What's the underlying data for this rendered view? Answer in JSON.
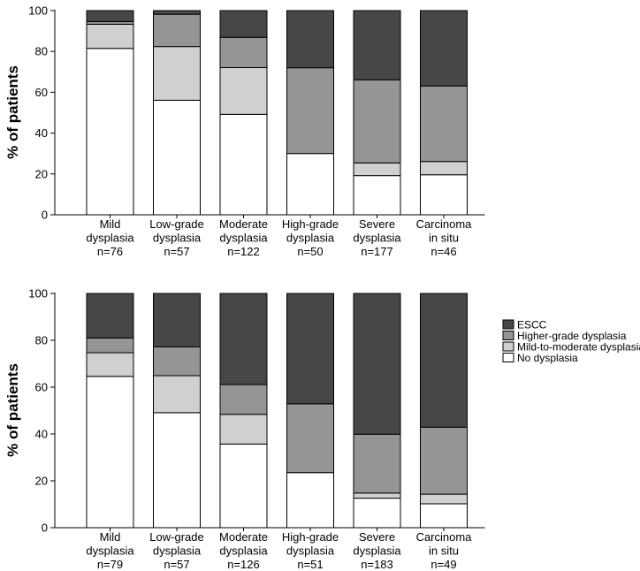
{
  "chart_data": [
    {
      "type": "bar",
      "stacked": true,
      "title": "",
      "xlabel": "",
      "ylabel": "% of patients",
      "ylim": [
        0,
        100
      ],
      "yticks": [
        0,
        20,
        40,
        60,
        80,
        100
      ],
      "categories": [
        [
          "Mild",
          "dysplasia",
          "n=76"
        ],
        [
          "Low-grade",
          "dysplasia",
          "n=57"
        ],
        [
          "Moderate",
          "dysplasia",
          "n=122"
        ],
        [
          "High-grade",
          "dysplasia",
          "n=50"
        ],
        [
          "Severe",
          "dysplasia",
          "n=177"
        ],
        [
          "Carcinoma",
          "in situ",
          "n=46"
        ]
      ],
      "series": [
        {
          "name": "No dysplasia",
          "color": "#ffffff",
          "values": [
            81.5,
            56.1,
            49.2,
            30.0,
            19.2,
            19.6
          ]
        },
        {
          "name": "Mild-to-moderate dysplasia",
          "color": "#d0d0d0",
          "values": [
            11.8,
            26.3,
            22.9,
            0.0,
            6.2,
            6.5
          ]
        },
        {
          "name": "Higher-grade dysplasia",
          "color": "#959595",
          "values": [
            1.3,
            15.8,
            14.8,
            42.0,
            40.7,
            37.0
          ]
        },
        {
          "name": "ESCC",
          "color": "#474747",
          "values": [
            5.4,
            1.8,
            13.1,
            28.0,
            33.9,
            36.9
          ]
        }
      ]
    },
    {
      "type": "bar",
      "stacked": true,
      "title": "",
      "xlabel": "",
      "ylabel": "% of patients",
      "ylim": [
        0,
        100
      ],
      "yticks": [
        0,
        20,
        40,
        60,
        80,
        100
      ],
      "legend_position": "right",
      "categories": [
        [
          "Mild",
          "dysplasia",
          "n=79"
        ],
        [
          "Low-grade",
          "dysplasia",
          "n=57"
        ],
        [
          "Moderate",
          "dysplasia",
          "n=126"
        ],
        [
          "High-grade",
          "dysplasia",
          "n=51"
        ],
        [
          "Severe",
          "dysplasia",
          "n=183"
        ],
        [
          "Carcinoma",
          "in situ",
          "n=49"
        ]
      ],
      "series": [
        {
          "name": "No dysplasia",
          "color": "#ffffff",
          "values": [
            64.6,
            49.1,
            35.7,
            23.5,
            12.6,
            10.2
          ]
        },
        {
          "name": "Mild-to-moderate dysplasia",
          "color": "#d0d0d0",
          "values": [
            10.1,
            15.8,
            12.7,
            0.0,
            2.2,
            4.1
          ]
        },
        {
          "name": "Higher-grade dysplasia",
          "color": "#959595",
          "values": [
            6.3,
            12.3,
            12.7,
            29.4,
            25.1,
            28.6
          ]
        },
        {
          "name": "ESCC",
          "color": "#474747",
          "values": [
            19.0,
            22.8,
            38.9,
            47.1,
            60.1,
            57.1
          ]
        }
      ]
    }
  ],
  "legend": {
    "entries": [
      {
        "label": "ESCC",
        "color": "#474747"
      },
      {
        "label": "Higher-grade dysplasia",
        "color": "#959595"
      },
      {
        "label": "Mild-to-moderate dysplasia",
        "color": "#d0d0d0"
      },
      {
        "label": "No dysplasia",
        "color": "#ffffff"
      }
    ]
  }
}
